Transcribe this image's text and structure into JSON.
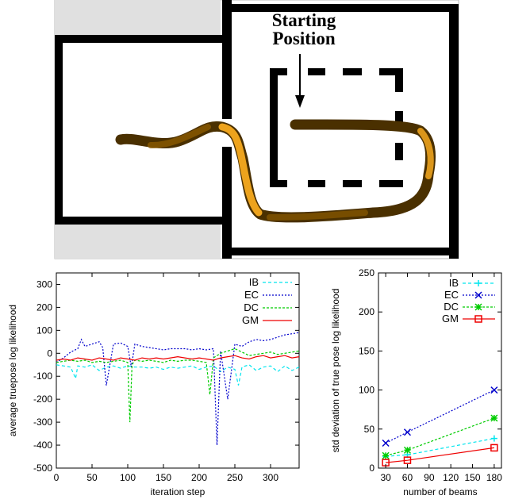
{
  "map": {
    "title_line1": "Starting",
    "title_line2": "Position"
  },
  "colors": {
    "wall": "#000000",
    "room_fill": "#e0e0e0",
    "trajectory_dark": "#4a3000",
    "trajectory_mid": "#8a5a00",
    "trajectory_light": "#ffb020",
    "IB": "#00e5ee",
    "EC": "#0000cc",
    "DC": "#00cc00",
    "GM": "#ee0000"
  },
  "chart_data": [
    {
      "type": "line",
      "xlabel": "iteration step",
      "ylabel": "average truepose log likelihood",
      "xlim": [
        0,
        340
      ],
      "ylim": [
        -500,
        350
      ],
      "xticks": [
        "0",
        "50",
        "100",
        "150",
        "200",
        "250",
        "300"
      ],
      "yticks": [
        "-500",
        "-400",
        "-300",
        "-200",
        "-100",
        "0",
        "100",
        "200",
        "300"
      ],
      "legend": "top-right",
      "series": [
        {
          "name": "IB",
          "color": "#00e5ee",
          "x": [
            0,
            10,
            20,
            27,
            30,
            40,
            50,
            60,
            70,
            80,
            90,
            100,
            110,
            120,
            130,
            140,
            150,
            160,
            170,
            180,
            190,
            200,
            210,
            220,
            230,
            240,
            250,
            255,
            260,
            270,
            280,
            290,
            300,
            310,
            320,
            330,
            340
          ],
          "y": [
            -50,
            -55,
            -60,
            -110,
            -55,
            -60,
            -50,
            -75,
            -60,
            -55,
            -65,
            -55,
            -60,
            -60,
            -65,
            -60,
            -70,
            -60,
            -65,
            -60,
            -55,
            -70,
            -60,
            -55,
            -80,
            -60,
            -70,
            -140,
            -60,
            -50,
            -75,
            -60,
            -55,
            -80,
            -55,
            -75,
            -60
          ]
        },
        {
          "name": "EC",
          "color": "#0000cc",
          "x": [
            0,
            10,
            20,
            30,
            35,
            40,
            50,
            60,
            65,
            70,
            80,
            90,
            100,
            105,
            110,
            120,
            130,
            140,
            150,
            160,
            170,
            180,
            190,
            200,
            210,
            220,
            225,
            230,
            240,
            250,
            260,
            270,
            280,
            290,
            300,
            310,
            320,
            330,
            340
          ],
          "y": [
            -40,
            -20,
            5,
            20,
            60,
            30,
            40,
            50,
            25,
            -140,
            40,
            45,
            30,
            -60,
            40,
            30,
            25,
            20,
            15,
            20,
            20,
            20,
            15,
            20,
            15,
            20,
            -400,
            10,
            -200,
            40,
            30,
            50,
            60,
            55,
            60,
            70,
            80,
            85,
            90
          ]
        },
        {
          "name": "DC",
          "color": "#00cc00",
          "x": [
            0,
            10,
            20,
            30,
            40,
            50,
            60,
            70,
            80,
            90,
            100,
            103,
            106,
            110,
            120,
            130,
            140,
            150,
            160,
            170,
            180,
            190,
            200,
            210,
            215,
            220,
            230,
            240,
            250,
            260,
            270,
            280,
            290,
            300,
            310,
            320,
            330,
            340
          ],
          "y": [
            -40,
            -35,
            -30,
            -35,
            -30,
            -40,
            -35,
            -40,
            -35,
            -30,
            -40,
            -300,
            -50,
            -30,
            -35,
            -30,
            -35,
            -40,
            -30,
            -35,
            -30,
            -30,
            -35,
            -40,
            -180,
            -20,
            0,
            10,
            20,
            5,
            -10,
            -5,
            0,
            5,
            -5,
            0,
            5,
            10
          ]
        },
        {
          "name": "GM",
          "color": "#ee0000",
          "x": [
            0,
            10,
            20,
            30,
            40,
            50,
            60,
            70,
            80,
            90,
            100,
            110,
            120,
            130,
            140,
            150,
            160,
            170,
            180,
            190,
            200,
            210,
            220,
            230,
            240,
            250,
            260,
            270,
            280,
            290,
            300,
            310,
            320,
            330,
            340
          ],
          "y": [
            -30,
            -25,
            -30,
            -20,
            -25,
            -30,
            -20,
            -25,
            -30,
            -20,
            -25,
            -30,
            -20,
            -25,
            -20,
            -25,
            -20,
            -15,
            -20,
            -25,
            -20,
            -25,
            -30,
            -20,
            -15,
            -10,
            -20,
            -25,
            -15,
            -10,
            -20,
            -15,
            -10,
            -20,
            -15
          ]
        }
      ]
    },
    {
      "type": "line",
      "xlabel": "number of beams",
      "ylabel": "std deviation of true pose log likelihood",
      "x_categories": [
        "30",
        "60",
        "90",
        "120",
        "150",
        "180"
      ],
      "xlim": [
        20,
        190
      ],
      "ylim": [
        0,
        250
      ],
      "yticks": [
        "0",
        "50",
        "100",
        "150",
        "200",
        "250"
      ],
      "legend": "top-right",
      "series": [
        {
          "name": "IB",
          "color": "#00e5ee",
          "marker": "plus",
          "x": [
            30,
            60,
            180
          ],
          "y": [
            15,
            17,
            38
          ]
        },
        {
          "name": "EC",
          "color": "#0000cc",
          "marker": "x",
          "x": [
            30,
            60,
            180
          ],
          "y": [
            32,
            46,
            100
          ]
        },
        {
          "name": "DC",
          "color": "#00cc00",
          "marker": "star",
          "x": [
            30,
            60,
            180
          ],
          "y": [
            16,
            23,
            64
          ]
        },
        {
          "name": "GM",
          "color": "#ee0000",
          "marker": "square",
          "x": [
            30,
            60,
            180
          ],
          "y": [
            7,
            10,
            26
          ]
        }
      ]
    }
  ]
}
